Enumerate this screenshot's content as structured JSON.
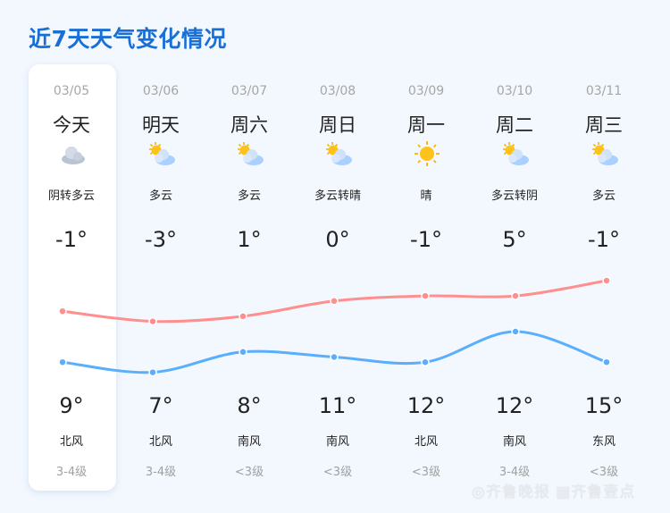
{
  "title": "近7天天气变化情况",
  "days": [
    {
      "date": "03/05",
      "day": "今天",
      "icon": "overcast-cloud-icon",
      "desc": "阴转多云",
      "top_temp": "-1°",
      "bottom_temp": "9°",
      "wind": "北风",
      "level": "3-4级"
    },
    {
      "date": "03/06",
      "day": "明天",
      "icon": "partly-cloudy-icon",
      "desc": "多云",
      "top_temp": "-3°",
      "bottom_temp": "7°",
      "wind": "北风",
      "level": "3-4级"
    },
    {
      "date": "03/07",
      "day": "周六",
      "icon": "partly-cloudy-icon",
      "desc": "多云",
      "top_temp": "1°",
      "bottom_temp": "8°",
      "wind": "南风",
      "level": "<3级"
    },
    {
      "date": "03/08",
      "day": "周日",
      "icon": "partly-cloudy-icon",
      "desc": "多云转晴",
      "top_temp": "0°",
      "bottom_temp": "11°",
      "wind": "南风",
      "level": "<3级"
    },
    {
      "date": "03/09",
      "day": "周一",
      "icon": "sun-icon",
      "desc": "晴",
      "top_temp": "-1°",
      "bottom_temp": "12°",
      "wind": "北风",
      "level": "<3级"
    },
    {
      "date": "03/10",
      "day": "周二",
      "icon": "partly-cloudy-icon",
      "desc": "多云转阴",
      "top_temp": "5°",
      "bottom_temp": "12°",
      "wind": "南风",
      "level": "3-4级"
    },
    {
      "date": "03/11",
      "day": "周三",
      "icon": "partly-cloudy-icon",
      "desc": "多云",
      "top_temp": "-1°",
      "bottom_temp": "15°",
      "wind": "东风",
      "level": "<3级"
    }
  ],
  "lines": {
    "red_values": [
      9,
      7,
      8,
      11,
      12,
      12,
      15
    ],
    "blue_values": [
      -1,
      -3,
      1,
      0,
      -1,
      5,
      -1
    ],
    "red_color": "#ff8f8f",
    "blue_color": "#5aaefc"
  },
  "colors": {
    "title": "#1a6fd6",
    "background": "#f3f8fe",
    "card": "#ffffff"
  },
  "watermark": "齐鲁晚报 齐鲁壹点"
}
